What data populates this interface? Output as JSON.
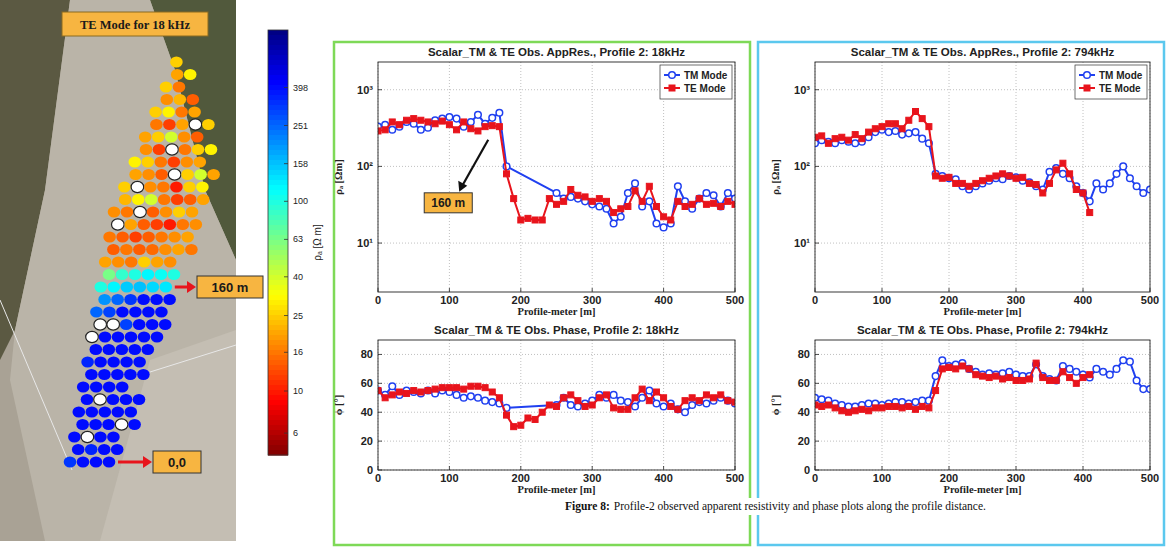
{
  "map": {
    "type": "heatmap",
    "title": "TE Mode for 18 kHz",
    "labels": [
      "160 m",
      "0,0"
    ],
    "colorbar": {
      "label": "ρₐ [Ω m]",
      "lim": [
        4.6,
        800
      ],
      "ticks": [
        398,
        251,
        158,
        100,
        63,
        40,
        25,
        16,
        10,
        6
      ],
      "log": true
    },
    "rows": [
      [
        320,
        398,
        398,
        398
      ],
      [
        398,
        351,
        398,
        398
      ],
      [
        398,
        null,
        398,
        398
      ],
      [
        398,
        398,
        398,
        null,
        398
      ],
      [
        398,
        398,
        398,
        398,
        398
      ],
      [
        398,
        null,
        398,
        398,
        398
      ],
      [
        398,
        398,
        398,
        398
      ],
      [
        398,
        398,
        398,
        398,
        398
      ],
      [
        350,
        398,
        398,
        398,
        398
      ],
      [
        398,
        398,
        398,
        398,
        398
      ],
      [
        null,
        398,
        398,
        398,
        398,
        398
      ],
      [
        null,
        null,
        300,
        398,
        398,
        398
      ],
      [
        250,
        300,
        398,
        398,
        398,
        398
      ],
      [
        200,
        251,
        320,
        398,
        398,
        398
      ],
      [
        100,
        120,
        150,
        158,
        140,
        130
      ],
      [
        63,
        90,
        100,
        120,
        110,
        100
      ],
      [
        20,
        18,
        16,
        25,
        20,
        18
      ],
      [
        14,
        16,
        14,
        15,
        18,
        20,
        16
      ],
      [
        16,
        14,
        12,
        14,
        16,
        18,
        20
      ],
      [
        null,
        20,
        14,
        12,
        10,
        16,
        18
      ],
      [
        18,
        16,
        null,
        14,
        18,
        25,
        20
      ],
      [
        22,
        30,
        40,
        16,
        12,
        14,
        20
      ],
      [
        25,
        null,
        18,
        16,
        10,
        25,
        30
      ],
      [
        20,
        18,
        14,
        null,
        25,
        40,
        20
      ],
      [
        30,
        25,
        16,
        12,
        18,
        20
      ],
      [
        18,
        12,
        null,
        16,
        25,
        30
      ],
      [
        20,
        25,
        40,
        18,
        14
      ],
      [
        16,
        12,
        20,
        null,
        25
      ],
      [
        25,
        30,
        16,
        20
      ],
      [
        18,
        22,
        14
      ],
      [
        25,
        16
      ],
      [
        20,
        30
      ],
      [
        25
      ]
    ]
  },
  "chart_data": [
    {
      "type": "line",
      "title": "Scalar_TM & TE Obs. AppRes., Profile 2: 18kHz",
      "xlabel": "Profile-meter [m]",
      "ylabel": "ρₐ [Ωm]",
      "xlim": [
        0,
        500
      ],
      "xticks": [
        0,
        100,
        200,
        300,
        400,
        500
      ],
      "ylim": [
        2.3,
        2300
      ],
      "yticks": [
        {
          "value": 10,
          "label": "10¹"
        },
        {
          "value": 100,
          "label": "10²"
        },
        {
          "value": 1000,
          "label": "10³"
        }
      ],
      "log": "y",
      "grid": true,
      "legend": "upper right",
      "annotations": [
        {
          "text": "160 m",
          "x": 160,
          "y": 300
        }
      ],
      "series": [
        {
          "name": "TM Mode",
          "color": "#2040f0",
          "marker": "circle",
          "x": [
            0,
            10,
            20,
            30,
            40,
            50,
            60,
            70,
            80,
            90,
            100,
            110,
            120,
            130,
            140,
            150,
            160,
            170,
            180,
            250,
            260,
            270,
            280,
            290,
            300,
            310,
            320,
            330,
            340,
            350,
            360,
            370,
            380,
            390,
            400,
            410,
            420,
            430,
            440,
            450,
            460,
            470,
            480,
            490,
            500
          ],
          "values": [
            330,
            350,
            300,
            330,
            380,
            360,
            300,
            320,
            400,
            420,
            440,
            420,
            330,
            380,
            470,
            360,
            430,
            500,
            100,
            45,
            38,
            40,
            38,
            35,
            32,
            30,
            28,
            18,
            22,
            45,
            60,
            30,
            35,
            18,
            16,
            18,
            55,
            35,
            28,
            38,
            45,
            42,
            30,
            45,
            38
          ]
        },
        {
          "name": "TE Mode",
          "color": "#e8141c",
          "marker": "square",
          "x": [
            0,
            10,
            20,
            30,
            40,
            50,
            60,
            70,
            80,
            90,
            100,
            110,
            120,
            130,
            140,
            150,
            160,
            170,
            180,
            190,
            200,
            210,
            220,
            230,
            240,
            250,
            260,
            270,
            280,
            290,
            300,
            310,
            320,
            330,
            340,
            350,
            360,
            370,
            380,
            390,
            400,
            410,
            420,
            430,
            440,
            450,
            460,
            470,
            480,
            490,
            500
          ],
          "values": [
            290,
            300,
            380,
            350,
            400,
            420,
            400,
            380,
            360,
            390,
            350,
            300,
            380,
            310,
            290,
            330,
            340,
            330,
            80,
            38,
            20,
            21,
            20,
            20,
            38,
            32,
            35,
            50,
            42,
            40,
            35,
            38,
            35,
            25,
            28,
            30,
            48,
            35,
            55,
            30,
            22,
            20,
            35,
            30,
            32,
            38,
            32,
            33,
            30,
            35,
            32
          ]
        }
      ]
    },
    {
      "type": "line",
      "title": "Scalar_TM & TE Obs. Phase, Profile 2: 18kHz",
      "xlabel": "Profile-meter [m]",
      "ylabel": "ϕ [°]",
      "xlim": [
        0,
        500
      ],
      "xticks": [
        0,
        100,
        200,
        300,
        400,
        500
      ],
      "ylim": [
        0,
        90
      ],
      "yticks": [
        0,
        20,
        40,
        60,
        80
      ],
      "grid": true,
      "series": [
        {
          "color": "#2040f0",
          "marker": "circle",
          "x": [
            0,
            10,
            20,
            30,
            40,
            50,
            60,
            70,
            80,
            90,
            100,
            110,
            120,
            130,
            140,
            150,
            160,
            170,
            180,
            250,
            260,
            270,
            280,
            290,
            300,
            310,
            320,
            330,
            340,
            350,
            360,
            370,
            380,
            390,
            400,
            410,
            420,
            430,
            440,
            450,
            460,
            470,
            480,
            490,
            500
          ],
          "values": [
            55,
            52,
            58,
            52,
            55,
            54,
            53,
            55,
            53,
            55,
            54,
            52,
            50,
            51,
            50,
            48,
            47,
            46,
            43,
            45,
            50,
            45,
            44,
            46,
            48,
            52,
            50,
            52,
            48,
            47,
            44,
            50,
            55,
            46,
            44,
            46,
            42,
            40,
            45,
            47,
            46,
            48,
            50,
            48,
            46
          ]
        },
        {
          "color": "#e8141c",
          "marker": "square",
          "x": [
            0,
            10,
            20,
            30,
            40,
            50,
            60,
            70,
            80,
            90,
            100,
            110,
            120,
            130,
            140,
            150,
            160,
            170,
            180,
            190,
            200,
            210,
            220,
            230,
            240,
            250,
            260,
            270,
            280,
            290,
            300,
            310,
            320,
            330,
            340,
            350,
            360,
            370,
            380,
            390,
            400,
            410,
            420,
            430,
            440,
            450,
            460,
            470,
            480,
            490,
            500
          ],
          "values": [
            55,
            50,
            52,
            54,
            53,
            55,
            54,
            55,
            56,
            57,
            57,
            57,
            56,
            58,
            58,
            57,
            54,
            50,
            38,
            30,
            31,
            36,
            35,
            40,
            45,
            44,
            50,
            52,
            48,
            44,
            45,
            50,
            52,
            43,
            42,
            42,
            50,
            56,
            48,
            54,
            50,
            44,
            42,
            48,
            50,
            48,
            52,
            50,
            52,
            48,
            47
          ]
        }
      ]
    },
    {
      "type": "line",
      "title": "Scalar_TM & TE Obs. AppRes., Profile 2: 794kHz",
      "xlabel": "Profile-meter [m]",
      "ylabel": "ρₐ [Ωm]",
      "xlim": [
        0,
        500
      ],
      "xticks": [
        0,
        100,
        200,
        300,
        400,
        500
      ],
      "ylim": [
        2.3,
        2300
      ],
      "yticks": [
        {
          "value": 10,
          "label": "10¹"
        },
        {
          "value": 100,
          "label": "10²"
        },
        {
          "value": 1000,
          "label": "10³"
        }
      ],
      "log": "y",
      "grid": true,
      "legend": "upper right",
      "series": [
        {
          "name": "TM Mode",
          "color": "#2040f0",
          "marker": "circle",
          "x": [
            0,
            10,
            20,
            30,
            40,
            50,
            60,
            70,
            80,
            90,
            100,
            110,
            120,
            130,
            140,
            150,
            160,
            170,
            180,
            190,
            200,
            210,
            220,
            230,
            240,
            250,
            260,
            270,
            280,
            290,
            300,
            310,
            320,
            330,
            340,
            350,
            360,
            370,
            380,
            390,
            400,
            410,
            420,
            430,
            440,
            450,
            460,
            470,
            480,
            490,
            500
          ],
          "values": [
            200,
            220,
            210,
            200,
            220,
            210,
            200,
            210,
            240,
            280,
            300,
            280,
            290,
            260,
            270,
            280,
            230,
            200,
            80,
            75,
            70,
            68,
            55,
            50,
            55,
            60,
            65,
            70,
            68,
            75,
            72,
            65,
            62,
            55,
            50,
            85,
            95,
            80,
            70,
            55,
            45,
            35,
            60,
            50,
            60,
            80,
            100,
            70,
            55,
            45,
            50
          ]
        },
        {
          "name": "TE Mode",
          "color": "#e8141c",
          "marker": "square",
          "x": [
            0,
            10,
            20,
            30,
            40,
            50,
            60,
            70,
            80,
            90,
            100,
            110,
            120,
            130,
            140,
            150,
            160,
            170,
            180,
            190,
            200,
            210,
            220,
            230,
            240,
            250,
            260,
            270,
            280,
            290,
            300,
            310,
            320,
            330,
            340,
            350,
            360,
            370,
            380,
            390,
            400,
            410
          ],
          "values": [
            240,
            250,
            200,
            230,
            240,
            220,
            260,
            230,
            280,
            310,
            330,
            360,
            360,
            310,
            400,
            520,
            420,
            330,
            75,
            70,
            72,
            60,
            60,
            55,
            60,
            65,
            70,
            75,
            80,
            75,
            70,
            72,
            60,
            58,
            45,
            60,
            90,
            110,
            80,
            50,
            45,
            25
          ]
        }
      ]
    },
    {
      "type": "line",
      "title": "Scalar_TM & TE Obs. Phase, Profile 2: 794kHz",
      "xlabel": "Profile-meter [m]",
      "ylabel": "ϕ [°]",
      "xlim": [
        0,
        500
      ],
      "xticks": [
        0,
        100,
        200,
        300,
        400,
        500
      ],
      "ylim": [
        0,
        90
      ],
      "yticks": [
        0,
        20,
        40,
        60,
        80
      ],
      "grid": true,
      "series": [
        {
          "color": "#2040f0",
          "marker": "circle",
          "x": [
            0,
            10,
            20,
            30,
            40,
            50,
            60,
            70,
            80,
            90,
            100,
            110,
            120,
            130,
            140,
            150,
            160,
            170,
            180,
            190,
            200,
            210,
            220,
            230,
            240,
            250,
            260,
            270,
            280,
            290,
            300,
            310,
            320,
            330,
            340,
            350,
            360,
            370,
            380,
            390,
            400,
            410,
            420,
            430,
            440,
            450,
            460,
            470,
            480,
            490,
            500
          ],
          "values": [
            50,
            49,
            48,
            46,
            45,
            44,
            44,
            45,
            46,
            46,
            45,
            46,
            47,
            47,
            46,
            47,
            48,
            48,
            65,
            76,
            72,
            73,
            74,
            70,
            68,
            66,
            67,
            66,
            67,
            68,
            66,
            65,
            65,
            73,
            65,
            63,
            62,
            72,
            70,
            68,
            66,
            64,
            70,
            68,
            66,
            70,
            76,
            75,
            62,
            56,
            56
          ]
        },
        {
          "color": "#e8141c",
          "marker": "square",
          "x": [
            0,
            10,
            20,
            30,
            40,
            50,
            60,
            70,
            80,
            90,
            100,
            110,
            120,
            130,
            140,
            150,
            160,
            170,
            180,
            190,
            200,
            210,
            220,
            230,
            240,
            250,
            260,
            270,
            280,
            290,
            300,
            310,
            320,
            330,
            340,
            350,
            360,
            370,
            380,
            390,
            400,
            410
          ],
          "values": [
            45,
            44,
            45,
            43,
            41,
            40,
            41,
            42,
            41,
            43,
            43,
            44,
            44,
            43,
            44,
            42,
            44,
            43,
            55,
            70,
            71,
            70,
            72,
            70,
            66,
            65,
            64,
            65,
            63,
            64,
            62,
            62,
            63,
            74,
            64,
            62,
            62,
            68,
            64,
            60,
            64,
            66
          ]
        }
      ]
    }
  ],
  "caption": {
    "label": "Figure 8:",
    "text": "Profile-2 observed apparent resistivity and phase plots along the profile distance."
  }
}
